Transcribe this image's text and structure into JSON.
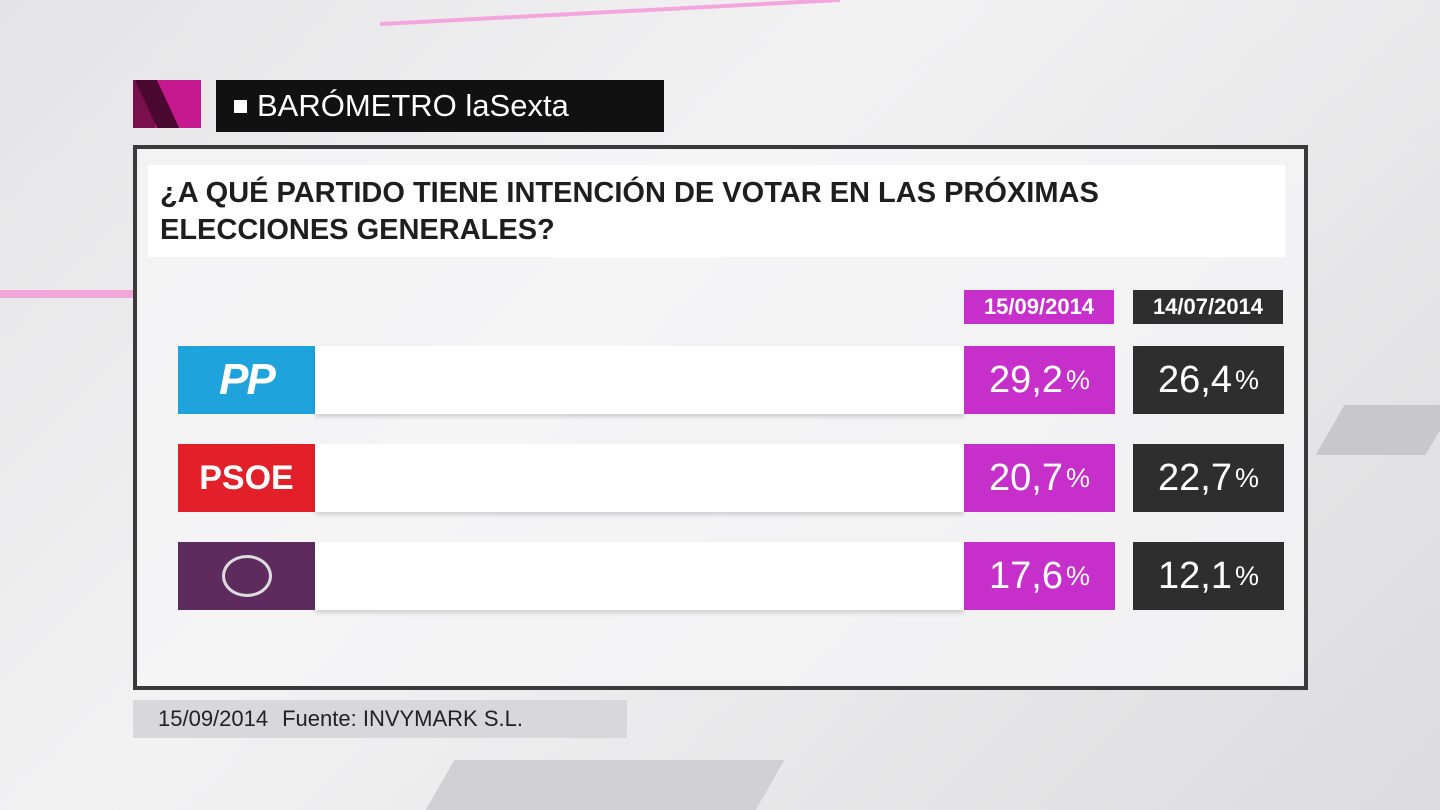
{
  "header": {
    "title": "BARÓMETRO laSexta"
  },
  "question": "¿A QUÉ PARTIDO TIENE INTENCIÓN DE VOTAR EN LAS PRÓXIMAS ELECCIONES GENERALES?",
  "table": {
    "columns": [
      "15/09/2014",
      "14/07/2014"
    ],
    "unit": "%",
    "rows": [
      {
        "logo": "PP",
        "values": [
          "29,2",
          "26,4"
        ]
      },
      {
        "logo": "PSOE",
        "values": [
          "20,7",
          "22,7"
        ]
      },
      {
        "values": [
          "17,6",
          "12,1"
        ]
      }
    ]
  },
  "footer": {
    "date": "15/09/2014",
    "source": "Fuente: INVYMARK S.L."
  }
}
